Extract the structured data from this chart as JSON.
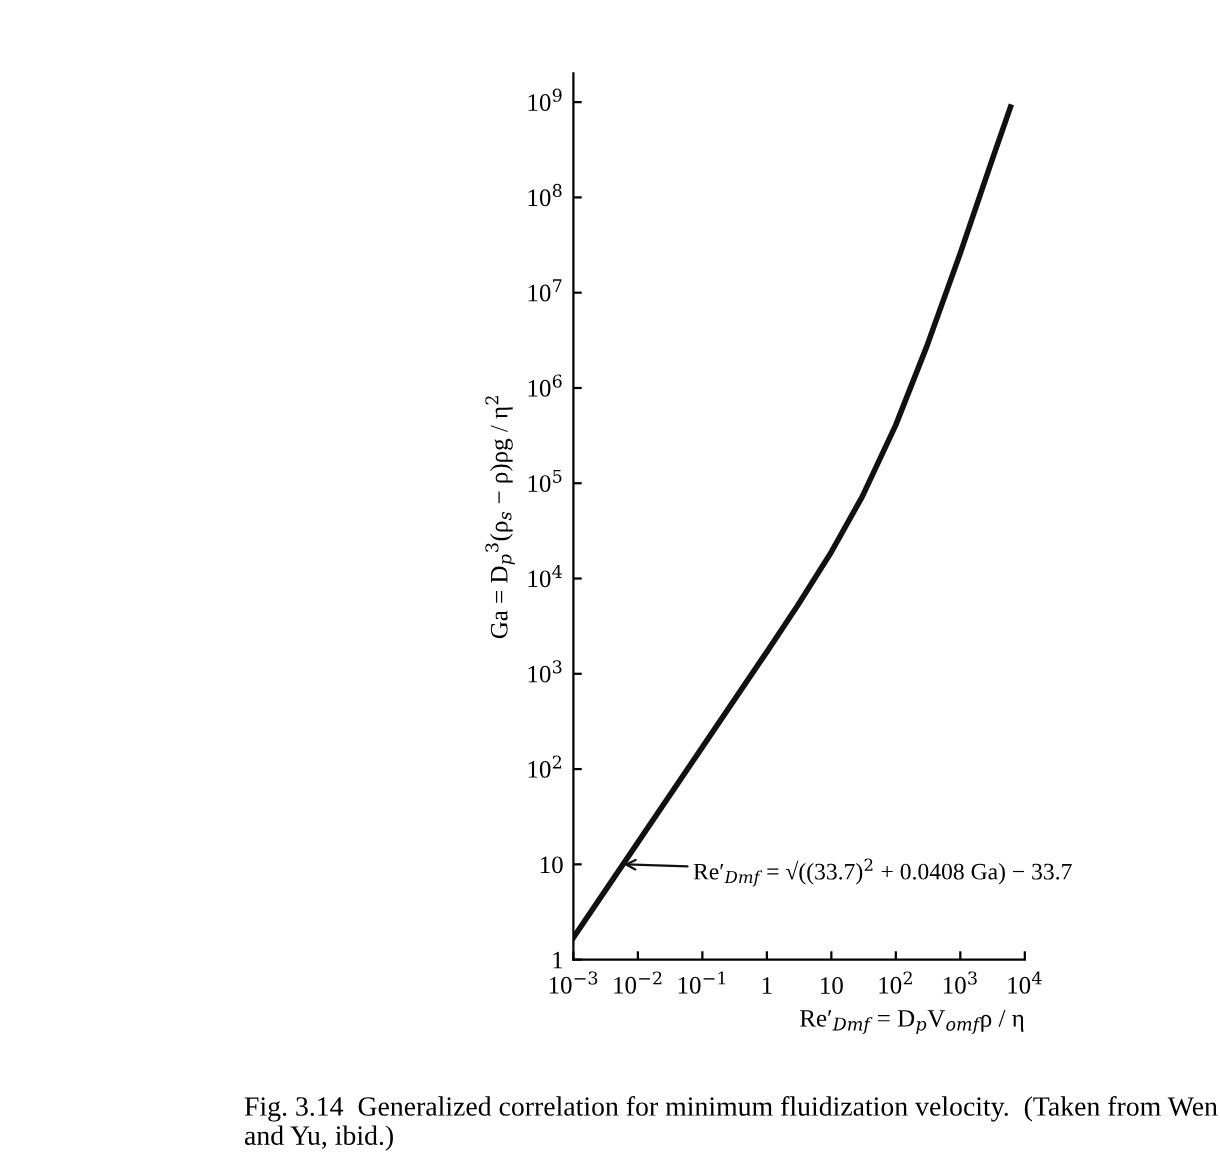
{
  "chart_data": {
    "type": "line",
    "xlabel": "Re′$_{Dmf}$ = D$_{p}$V$_{omf}$ρ / η",
    "ylabel": "Ga = D$_{p}$$^{3}$(ρ$_{s}$ − ρ)ρg / η$^{2}$",
    "x": [
      0.001,
      0.01,
      0.1,
      1,
      3,
      10,
      30,
      100,
      300,
      1000,
      3000,
      6000
    ],
    "series": [
      {
        "color": "#111111",
        "values": [
          1.7,
          17,
          170,
          1700,
          5200,
          19000,
          72000,
          410000,
          2700000,
          26000000,
          230000000,
          890000000
        ]
      }
    ],
    "log": "xy",
    "xlim": [
      0.001,
      10000
    ],
    "ylim": [
      1,
      2000000000
    ],
    "xticks": [
      {
        "value": 0.001,
        "label": "10$^{−3}$"
      },
      {
        "value": 0.01,
        "label": "10$^{−2}$"
      },
      {
        "value": 0.1,
        "label": "10$^{−1}$"
      },
      1,
      10,
      {
        "value": 100,
        "label": "10$^{2}$"
      },
      {
        "value": 1000,
        "label": "10$^{3}$"
      },
      {
        "value": 10000,
        "label": "10$^{4}$"
      }
    ],
    "yticks": [
      1,
      10,
      {
        "value": 100,
        "label": "10$^{2}$"
      },
      {
        "value": 1000,
        "label": "10$^{3}$"
      },
      {
        "value": 10000,
        "label": "10$^{4}$"
      },
      {
        "value": 100000,
        "label": "10$^{5}$"
      },
      {
        "value": 1000000,
        "label": "10$^{6}$"
      },
      {
        "value": 10000000,
        "label": "10$^{7}$"
      },
      {
        "value": 100000000,
        "label": "10$^{8}$"
      },
      {
        "value": 1000000000,
        "label": "10$^{9}$"
      }
    ],
    "grid": false,
    "line_style": "solid",
    "annotations": [
      {
        "text": "Re′$_{Dmf}$ = √((33.7)$^{2}$ + 0.0408 Ga) − 33.7",
        "x": 0.006,
        "y": 10
      },
      "Fig. 3.14  Generalized correlation for minimum fluidization velocity.  (Taken from Wen and Yu, ibid.)"
    ]
  }
}
